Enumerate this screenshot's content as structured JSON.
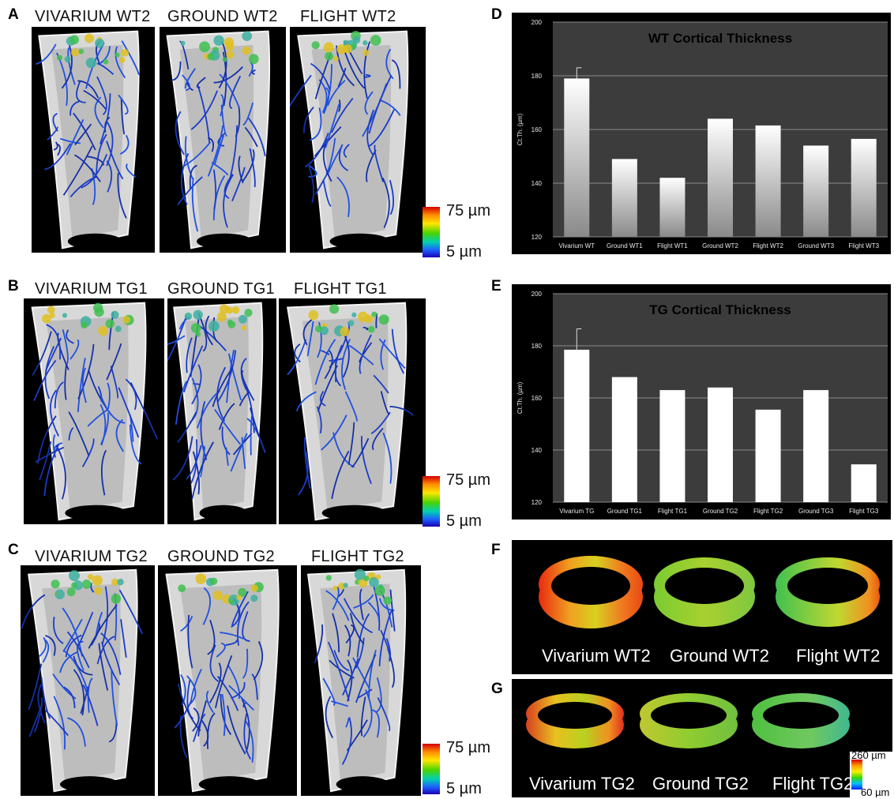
{
  "panel_labels": [
    "A",
    "B",
    "C",
    "D",
    "E",
    "F",
    "G"
  ],
  "row_a": [
    "VIVARIUM WT2",
    "GROUND WT2",
    "FLIGHT WT2"
  ],
  "row_b": [
    "VIVARIUM  TG1",
    "GROUND  TG1",
    "FLIGHT  TG1"
  ],
  "row_c": [
    "VIVARIUM  TG2",
    "GROUND  TG2",
    "FLIGHT  TG2"
  ],
  "scale": {
    "top": "75 µm",
    "bottom": "5 µm"
  },
  "ring_f": [
    "Vivarium WT2",
    "Ground WT2",
    "Flight WT2"
  ],
  "ring_g": [
    "Vivarium TG2",
    "Ground TG2",
    "Flight TG2"
  ],
  "ring_scale": {
    "top": "260 µm",
    "bottom": "60 µm"
  },
  "colors": {
    "chart_bg": "#3c3c3c",
    "panel_bg": "#000000",
    "bar": "#ffffff",
    "vessel": "#1a3cc8"
  },
  "chart_data": [
    {
      "type": "bar",
      "title": "WT Cortical Thickness",
      "ylabel": "Ct.Th. (µm)",
      "xlabel": "",
      "ylim": [
        120,
        200
      ],
      "yticks": [
        120,
        140,
        160,
        180,
        200
      ],
      "grid": true,
      "categories": [
        "Vivarium WT",
        "Ground WT1",
        "Flight WT1",
        "Ground WT2",
        "Flight WT2",
        "Ground WT3",
        "Flight WT3"
      ],
      "values": [
        179,
        149,
        142,
        164,
        161.5,
        154,
        156.5
      ],
      "errors": [
        4,
        0,
        0,
        0,
        0,
        0,
        0
      ],
      "bar_style": "gradient"
    },
    {
      "type": "bar",
      "title": "TG Cortical Thickness",
      "ylabel": "Ct.Th. (µm)",
      "xlabel": "",
      "ylim": [
        120,
        200
      ],
      "yticks": [
        120,
        140,
        160,
        180,
        200
      ],
      "grid": true,
      "categories": [
        "Vivarium TG",
        "Ground TG1",
        "Flight TG1",
        "Ground TG2",
        "Flight TG2",
        "Ground TG3",
        "Flight TG3"
      ],
      "values": [
        178.5,
        168,
        163,
        164,
        155.5,
        163,
        134.5
      ],
      "errors": [
        8,
        0,
        0,
        0,
        0,
        0,
        0
      ],
      "bar_style": "solid"
    }
  ]
}
